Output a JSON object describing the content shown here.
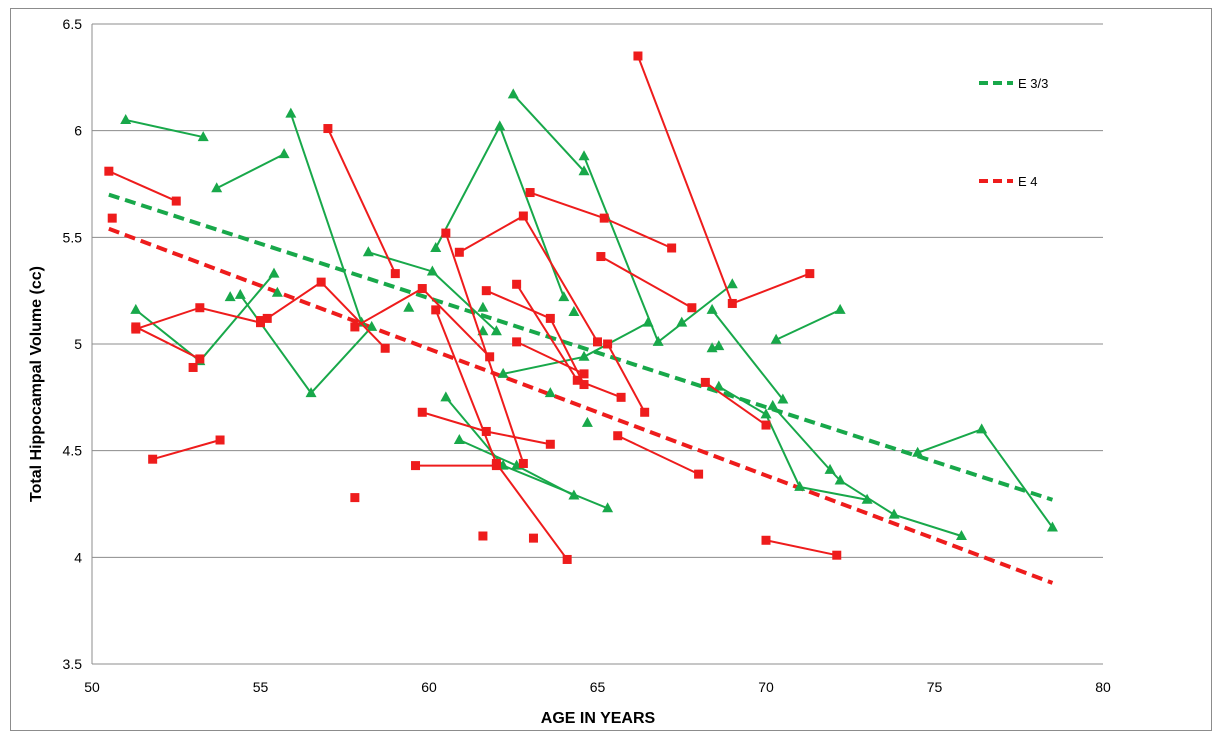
{
  "chart_data": {
    "type": "scatter",
    "title": "",
    "xlabel": "AGE IN YEARS",
    "ylabel": "Total Hippocampal Volume (cc)",
    "xlim": [
      50,
      80
    ],
    "ylim": [
      3.5,
      6.5
    ],
    "x_ticks": [
      "50",
      "55",
      "60",
      "65",
      "70",
      "75",
      "80"
    ],
    "y_ticks": [
      "3.5",
      "4",
      "4.5",
      "5",
      "5.5",
      "6",
      "6.5"
    ],
    "grid": "horizontal",
    "legend_position": "top-right",
    "colors": {
      "e33": "#18a84a",
      "e4": "#ee1c1c"
    },
    "series": [
      {
        "name": "E 3/3",
        "marker": "triangle",
        "color": "#18a84a",
        "trend": [
          [
            50.5,
            5.7
          ],
          [
            78.5,
            4.27
          ]
        ],
        "trajectories": [
          [
            [
              51.0,
              6.05
            ],
            [
              53.3,
              5.97
            ]
          ],
          [
            [
              53.7,
              5.73
            ],
            [
              55.7,
              5.89
            ]
          ],
          [
            [
              51.3,
              5.16
            ],
            [
              53.2,
              4.92
            ],
            [
              55.4,
              5.33
            ]
          ],
          [
            [
              54.1,
              5.22
            ]
          ],
          [
            [
              54.4,
              5.23
            ],
            [
              56.5,
              4.77
            ],
            [
              58.3,
              5.08
            ]
          ],
          [
            [
              55.5,
              5.24
            ]
          ],
          [
            [
              55.9,
              6.08
            ],
            [
              58.0,
              5.1
            ]
          ],
          [
            [
              58.2,
              5.43
            ],
            [
              60.1,
              5.34
            ],
            [
              62.0,
              5.06
            ]
          ],
          [
            [
              59.4,
              5.17
            ]
          ],
          [
            [
              60.2,
              5.45
            ],
            [
              62.1,
              6.02
            ],
            [
              64.0,
              5.22
            ]
          ],
          [
            [
              61.6,
              5.17
            ]
          ],
          [
            [
              61.6,
              5.06
            ]
          ],
          [
            [
              62.5,
              6.17
            ],
            [
              64.6,
              5.81
            ]
          ],
          [
            [
              64.6,
              5.88
            ],
            [
              66.8,
              5.01
            ],
            [
              69.0,
              5.28
            ]
          ],
          [
            [
              64.3,
              5.15
            ]
          ],
          [
            [
              62.2,
              4.86
            ],
            [
              64.6,
              4.94
            ],
            [
              66.5,
              5.1
            ]
          ],
          [
            [
              63.6,
              4.77
            ]
          ],
          [
            [
              64.7,
              4.63
            ]
          ],
          [
            [
              60.5,
              4.75
            ],
            [
              62.2,
              4.43
            ],
            [
              65.3,
              4.23
            ]
          ],
          [
            [
              60.9,
              4.55
            ],
            [
              62.6,
              4.43
            ],
            [
              64.3,
              4.29
            ]
          ],
          [
            [
              67.5,
              5.1
            ]
          ],
          [
            [
              68.4,
              5.16
            ],
            [
              70.5,
              4.74
            ]
          ],
          [
            [
              68.4,
              4.98
            ],
            [
              68.6,
              4.99
            ]
          ],
          [
            [
              68.6,
              4.8
            ],
            [
              70.0,
              4.67
            ],
            [
              71.0,
              4.33
            ],
            [
              73.0,
              4.27
            ]
          ],
          [
            [
              70.2,
              4.71
            ],
            [
              71.9,
              4.41
            ],
            [
              72.2,
              4.36
            ],
            [
              73.8,
              4.2
            ],
            [
              75.8,
              4.1
            ]
          ],
          [
            [
              70.3,
              5.02
            ],
            [
              72.2,
              5.16
            ]
          ],
          [
            [
              74.5,
              4.49
            ],
            [
              76.4,
              4.6
            ],
            [
              78.5,
              4.14
            ]
          ]
        ]
      },
      {
        "name": "E 4",
        "marker": "square",
        "color": "#ee1c1c",
        "trend": [
          [
            50.5,
            5.54
          ],
          [
            78.5,
            3.88
          ]
        ],
        "trajectories": [
          [
            [
              50.5,
              5.81
            ],
            [
              52.5,
              5.67
            ]
          ],
          [
            [
              50.6,
              5.59
            ]
          ],
          [
            [
              51.3,
              5.07
            ],
            [
              53.2,
              5.17
            ],
            [
              55.0,
              5.1
            ]
          ],
          [
            [
              51.3,
              5.08
            ],
            [
              53.2,
              4.93
            ],
            [
              53.0,
              4.89
            ]
          ],
          [
            [
              51.8,
              4.46
            ],
            [
              53.8,
              4.55
            ]
          ],
          [
            [
              55.2,
              5.12
            ],
            [
              56.8,
              5.29
            ],
            [
              58.7,
              4.98
            ]
          ],
          [
            [
              55.0,
              5.11
            ]
          ],
          [
            [
              57.0,
              6.01
            ],
            [
              59.0,
              5.33
            ]
          ],
          [
            [
              57.8,
              4.28
            ]
          ],
          [
            [
              57.8,
              5.08
            ],
            [
              59.8,
              5.26
            ],
            [
              61.8,
              4.94
            ]
          ],
          [
            [
              59.6,
              4.43
            ],
            [
              62.0,
              4.43
            ]
          ],
          [
            [
              59.8,
              4.68
            ],
            [
              61.7,
              4.59
            ],
            [
              63.6,
              4.53
            ]
          ],
          [
            [
              60.2,
              5.16
            ],
            [
              62.0,
              4.44
            ],
            [
              64.1,
              3.99
            ]
          ],
          [
            [
              60.5,
              5.52
            ],
            [
              62.8,
              4.44
            ]
          ],
          [
            [
              60.9,
              5.43
            ],
            [
              62.8,
              5.6
            ],
            [
              65.0,
              5.01
            ]
          ],
          [
            [
              61.6,
              4.1
            ]
          ],
          [
            [
              61.7,
              5.25
            ],
            [
              63.6,
              5.12
            ],
            [
              64.6,
              4.81
            ]
          ],
          [
            [
              63.1,
              4.09
            ]
          ],
          [
            [
              62.6,
              5.01
            ],
            [
              64.6,
              4.86
            ]
          ],
          [
            [
              62.6,
              5.28
            ],
            [
              64.4,
              4.83
            ],
            [
              65.7,
              4.75
            ]
          ],
          [
            [
              63.0,
              5.71
            ],
            [
              65.2,
              5.59
            ],
            [
              67.2,
              5.45
            ]
          ],
          [
            [
              65.1,
              5.41
            ],
            [
              67.8,
              5.17
            ]
          ],
          [
            [
              65.3,
              5.0
            ],
            [
              66.4,
              4.68
            ]
          ],
          [
            [
              65.6,
              4.57
            ],
            [
              68.0,
              4.39
            ]
          ],
          [
            [
              66.2,
              6.35
            ],
            [
              69.0,
              5.19
            ],
            [
              71.3,
              5.33
            ]
          ],
          [
            [
              68.2,
              4.82
            ],
            [
              70.0,
              4.62
            ]
          ],
          [
            [
              70.0,
              4.08
            ],
            [
              72.1,
              4.01
            ]
          ]
        ]
      }
    ]
  }
}
